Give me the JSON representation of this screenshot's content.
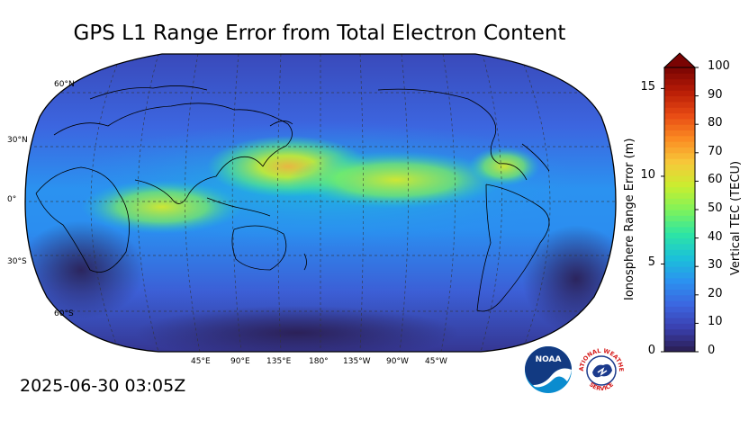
{
  "title": "GPS L1 Range Error from Total Electron Content",
  "timestamp": "2025-06-30 03:05Z",
  "map": {
    "projection": "robinson",
    "central_longitude": "180",
    "lat_labels": [
      "60°N",
      "30°N",
      "0°",
      "30°S",
      "60°S"
    ],
    "lon_labels": [
      "45°E",
      "90°E",
      "135°E",
      "180°",
      "135°W",
      "90°W",
      "45°W"
    ]
  },
  "colorbar": {
    "left_label": "Ionosphere Range Error (m)",
    "right_label": "Vertical TEC (TECU)",
    "left_ticks": [
      "0",
      "5",
      "10",
      "15"
    ],
    "right_ticks": [
      "0",
      "10",
      "20",
      "30",
      "40",
      "50",
      "60",
      "70",
      "80",
      "90",
      "100"
    ],
    "tec_range": [
      0,
      100
    ],
    "range_error_range": [
      0,
      16.2
    ],
    "extend": "max",
    "colors": [
      "#2a1d4f",
      "#3a3fae",
      "#3c66e0",
      "#2b92f0",
      "#1bc2d8",
      "#2ee6a3",
      "#7ff35a",
      "#c9ee2f",
      "#f7c83a",
      "#fb8b22",
      "#e84a14",
      "#b81c06",
      "#7a0403"
    ]
  },
  "logos": {
    "noaa": "NOAA",
    "nws_top": "NATIONAL WEATHER",
    "nws_bottom": "SERVICE"
  },
  "chart_data": {
    "type": "heatmap",
    "title": "GPS L1 Range Error from Total Electron Content",
    "value_range": [
      0,
      100
    ],
    "features": [
      {
        "region": "equatorial Pacific / Indian Ocean band",
        "approx_tec": 55
      },
      {
        "region": "western Pacific north of equator",
        "approx_tec": 60
      },
      {
        "region": "northern South America",
        "approx_tec": 52
      },
      {
        "region": "high latitudes",
        "approx_tec": 10
      }
    ]
  }
}
